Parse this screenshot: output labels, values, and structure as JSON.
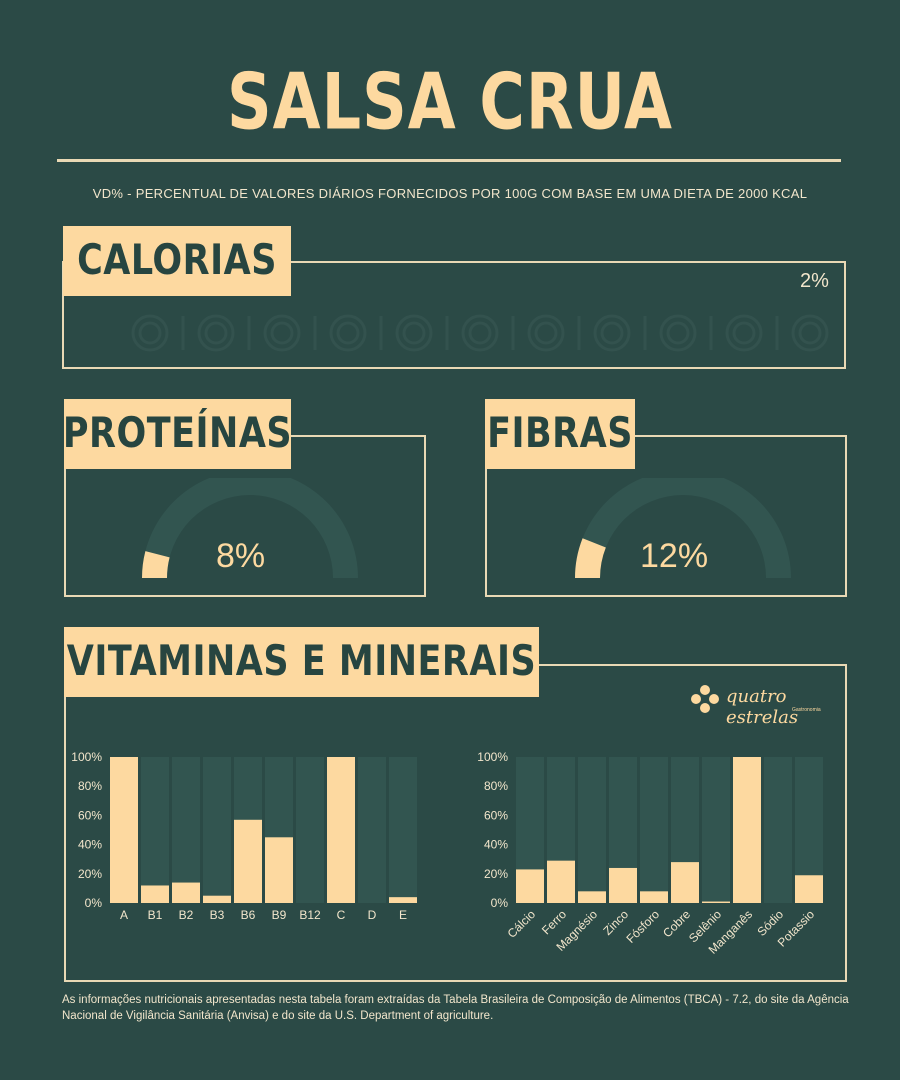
{
  "title": "SALSA CRUA",
  "subtitle": "VD% - PERCENTUAL DE VALORES DIÁRIOS FORNECIDOS POR 100G COM BASE EM UMA DIETA DE 2000 KCAL",
  "calorias": {
    "label": "CALORIAS",
    "value_text": "2%",
    "value": 2
  },
  "proteinas": {
    "label": "PROTEÍNAS",
    "value_text": "8%",
    "value": 8
  },
  "fibras": {
    "label": "FIBRAS",
    "value_text": "12%",
    "value": 12
  },
  "vitaminas": {
    "label": "VITAMINAS E MINERAIS"
  },
  "logo": {
    "name": "quatro estrelas",
    "tagline": "Gastronomia"
  },
  "footer": "As informações nutricionais apresentadas nesta tabela foram extraídas da Tabela Brasileira de Composição de Alimentos (TBCA) - 7.2, do site da Agência Nacional de Vigilância Sanitária (Anvisa) e do site da U.S. Department of agriculture.",
  "colors": {
    "background": "#2b4a46",
    "accent": "#fdd9a0",
    "track": "#325550",
    "border": "#e9d9b5"
  },
  "chart_data": [
    {
      "type": "bar",
      "categories": [
        "A",
        "B1",
        "B2",
        "B3",
        "B6",
        "B9",
        "B12",
        "C",
        "D",
        "E"
      ],
      "values": [
        100,
        12,
        14,
        5,
        57,
        45,
        0,
        100,
        0,
        4
      ],
      "yticks": [
        "0%",
        "20%",
        "40%",
        "60%",
        "80%",
        "100%"
      ],
      "ylim": [
        0,
        100
      ]
    },
    {
      "type": "bar",
      "categories": [
        "Cálcio",
        "Ferro",
        "Magnésio",
        "Zinco",
        "Fósforo",
        "Cobre",
        "Selênio",
        "Manganês",
        "Sódio",
        "Potassio"
      ],
      "values": [
        23,
        29,
        8,
        24,
        8,
        28,
        1,
        100,
        0,
        19
      ],
      "yticks": [
        "0%",
        "20%",
        "40%",
        "60%",
        "80%",
        "100%"
      ],
      "ylim": [
        0,
        100
      ]
    }
  ]
}
